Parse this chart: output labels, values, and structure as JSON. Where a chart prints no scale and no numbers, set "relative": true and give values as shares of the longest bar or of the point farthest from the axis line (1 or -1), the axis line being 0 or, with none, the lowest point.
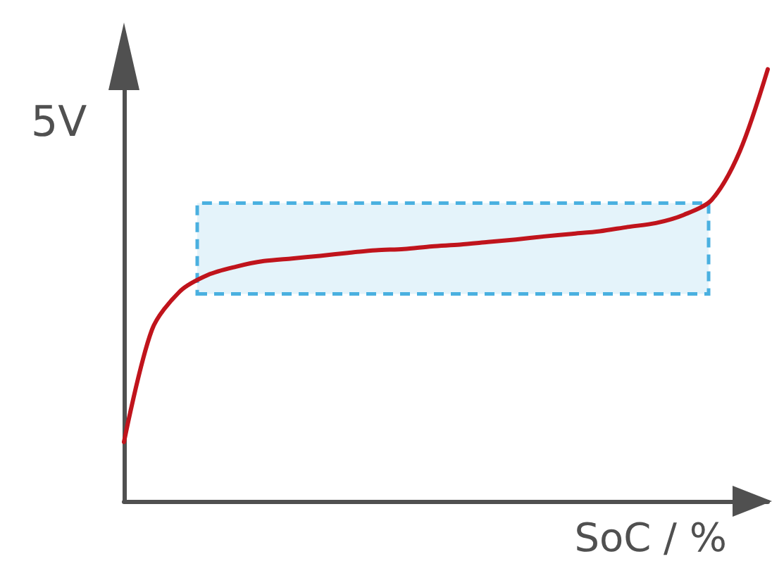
{
  "chart_data": {
    "type": "line",
    "relative": true,
    "ylabel": "5V",
    "xlabel": "SoC / %",
    "grid": false,
    "marker": "none",
    "line_style": "solid",
    "categories": [
      null,
      null,
      null,
      null,
      null,
      null,
      null,
      null,
      null,
      null,
      null,
      null,
      null,
      null,
      null,
      null,
      null,
      null,
      null,
      null,
      null,
      null,
      null,
      null
    ],
    "series": [
      {
        "color": "#c0141c",
        "values": [
          0.137,
          0.397,
          0.486,
          0.524,
          0.543,
          0.556,
          0.562,
          0.568,
          0.575,
          0.581,
          0.584,
          0.59,
          0.594,
          0.6,
          0.606,
          0.613,
          0.619,
          0.625,
          0.635,
          0.644,
          0.663,
          0.698,
          0.81,
          1
        ]
      }
    ],
    "bands": [
      {
        "axis": "y",
        "from": 0.48,
        "to": 0.69,
        "color": "#4ab0e0"
      }
    ]
  }
}
